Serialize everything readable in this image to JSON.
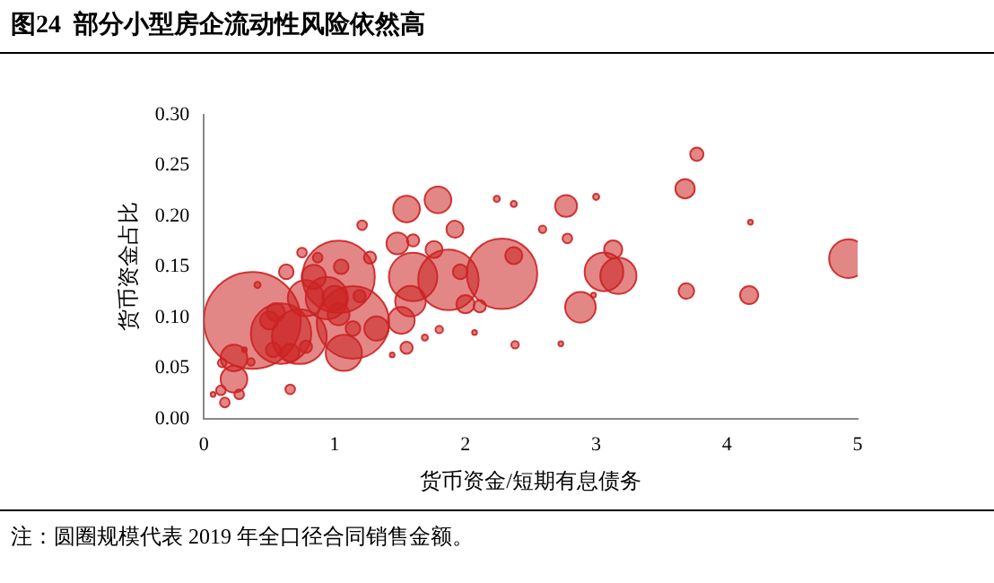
{
  "chart_data": {
    "type": "bubble",
    "title": "图24  部分小型房企流动性风险依然高",
    "xlabel": "货币资金/短期有息债务",
    "ylabel": "货币资金占比",
    "annotations": [
      "注：圆圈规模代表 2019 年全口径合同销售金额。"
    ],
    "xlim": [
      0,
      5
    ],
    "xticks": [
      0,
      1,
      2,
      3,
      4,
      5
    ],
    "ylim": [
      0,
      0.3
    ],
    "yticks": [
      {
        "value": 0,
        "label": "0.00"
      },
      {
        "value": 0.05,
        "label": "0.05"
      },
      {
        "value": 0.1,
        "label": "0.10"
      },
      {
        "value": 0.15,
        "label": "0.15"
      },
      {
        "value": 0.2,
        "label": "0.20"
      },
      {
        "value": 0.25,
        "label": "0.25"
      },
      {
        "value": 0.3,
        "label": "0.30"
      }
    ],
    "grid": false,
    "legend": false,
    "series": [
      {
        "color": "#cc2222",
        "x": [
          0.37,
          0.59,
          0.73,
          1.03,
          1.14,
          1.87,
          2.28,
          1.6,
          0.78,
          0.94,
          1.07,
          0.23,
          0.23,
          1.55,
          1.79,
          1.92,
          1.48,
          1.6,
          1.76,
          2.37,
          1.58,
          1.51,
          1.32,
          0.63,
          0.75,
          1.21,
          1.27,
          0.5,
          0.53,
          0.66,
          0.78,
          1.55,
          1.8,
          1.69,
          2.07,
          1.44,
          2.38,
          2.24,
          2.37,
          0.66,
          0.16,
          0.13,
          0.27,
          0.07,
          0.14,
          0.36,
          0.31,
          0.41,
          1.0,
          1.03,
          1.14,
          1.05,
          0.87,
          2.0,
          2.11,
          1.96,
          0.55,
          1.19,
          0.84,
          2.77,
          3.0,
          2.59,
          2.78,
          3.13,
          3.06,
          3.17,
          2.88,
          2.98,
          2.73,
          3.68,
          3.77,
          4.18,
          3.69,
          4.17,
          4.93
        ],
        "values": [
          0.097,
          0.084,
          0.081,
          0.14,
          0.095,
          0.137,
          0.143,
          0.14,
          0.119,
          0.119,
          0.065,
          0.06,
          0.039,
          0.207,
          0.216,
          0.187,
          0.173,
          0.176,
          0.167,
          0.161,
          0.116,
          0.097,
          0.089,
          0.145,
          0.164,
          0.191,
          0.159,
          0.097,
          0.068,
          0.065,
          0.071,
          0.07,
          0.088,
          0.08,
          0.085,
          0.063,
          0.073,
          0.217,
          0.212,
          0.029,
          0.016,
          0.028,
          0.024,
          0.024,
          0.055,
          0.056,
          0.068,
          0.132,
          0.119,
          0.103,
          0.089,
          0.15,
          0.159,
          0.113,
          0.111,
          0.145,
          0.105,
          0.121,
          0.14,
          0.21,
          0.219,
          0.187,
          0.178,
          0.167,
          0.145,
          0.141,
          0.11,
          0.122,
          0.074,
          0.227,
          0.261,
          0.194,
          0.126,
          0.122,
          0.158
        ],
        "sizes": [
          1,
          0.39,
          0.32,
          0.56,
          0.56,
          0.39,
          0.53,
          0.25,
          0.14,
          0.19,
          0.14,
          0.076,
          0.076,
          0.076,
          0.076,
          0.031,
          0.051,
          0.016,
          0.031,
          0.031,
          0.1,
          0.076,
          0.063,
          0.023,
          0.01,
          0.01,
          0.016,
          0.035,
          0.023,
          0.035,
          0.016,
          0.016,
          0.006,
          0.004,
          0.0025,
          0.0025,
          0.006,
          0.004,
          0.004,
          0.01,
          0.01,
          0.01,
          0.01,
          0.0025,
          0.008,
          0.006,
          0.0025,
          0.004,
          0.063,
          0.051,
          0.023,
          0.023,
          0.01,
          0.035,
          0.016,
          0.023,
          0.035,
          0.016,
          0.063,
          0.051,
          0.004,
          0.006,
          0.01,
          0.035,
          0.16,
          0.14,
          0.1,
          0.0025,
          0.0025,
          0.04,
          0.019,
          0.0025,
          0.026,
          0.035,
          0.16
        ]
      }
    ]
  }
}
